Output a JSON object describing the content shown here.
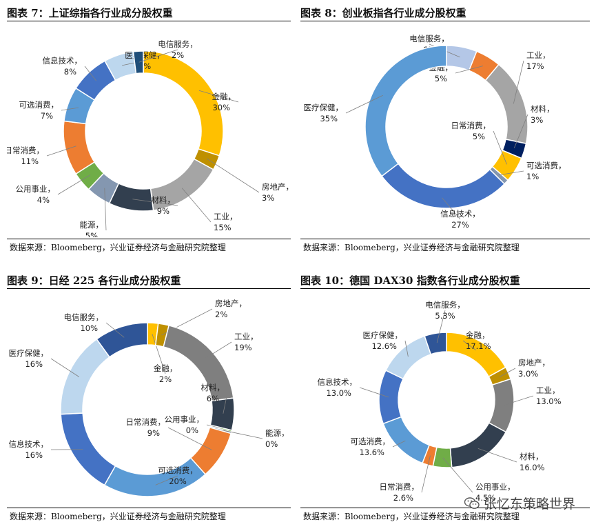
{
  "chart_data": [
    {
      "type": "pie",
      "title": "图表 7：上证综指各行业成分股权重",
      "source": "数据来源：Bloomeberg，兴业证券经济与金融研究院整理",
      "slices": [
        {
          "label": "金融",
          "value_text": "30%",
          "value": 30,
          "color": "#FFC000"
        },
        {
          "label": "房地产",
          "value_text": "3%",
          "value": 3,
          "color": "#BF9000"
        },
        {
          "label": "工业",
          "value_text": "15%",
          "value": 15,
          "color": "#A5A5A5"
        },
        {
          "label": "材料",
          "value_text": "9%",
          "value": 9,
          "color": "#323F4F"
        },
        {
          "label": "能源",
          "value_text": "5%",
          "value": 5,
          "color": "#8497B0"
        },
        {
          "label": "公用事业",
          "value_text": "4%",
          "value": 4,
          "color": "#70AD47"
        },
        {
          "label": "日常消费",
          "value_text": "11%",
          "value": 11,
          "color": "#ED7D31"
        },
        {
          "label": "可选消费",
          "value_text": "7%",
          "value": 7,
          "color": "#5B9BD5"
        },
        {
          "label": "信息技术",
          "value_text": "8%",
          "value": 8,
          "color": "#4472C4"
        },
        {
          "label": "医疗保健",
          "value_text": "6%",
          "value": 6,
          "color": "#BDD7EE"
        },
        {
          "label": "电信服务",
          "value_text": "2%",
          "value": 2,
          "color": "#1F4E79"
        }
      ]
    },
    {
      "type": "pie",
      "title": "图表 8：创业板指各行业成分股权重",
      "source": "数据来源：Bloomeberg，兴业证券经济与金融研究院整理",
      "slices": [
        {
          "label": "电信服务",
          "value_text": "6%",
          "value": 6,
          "color": "#B4C7E7"
        },
        {
          "label": "金融",
          "value_text": "5%",
          "value": 5,
          "color": "#ED7D31"
        },
        {
          "label": "工业",
          "value_text": "17%",
          "value": 17,
          "color": "#A5A5A5"
        },
        {
          "label": "材料",
          "value_text": "3%",
          "value": 3,
          "color": "#002060"
        },
        {
          "label": "日常消费",
          "value_text": "5%",
          "value": 5,
          "color": "#FFC000"
        },
        {
          "label": "可选消费",
          "value_text": "1%",
          "value": 1,
          "color": "#8497B0"
        },
        {
          "label": "信息技术",
          "value_text": "27%",
          "value": 27,
          "color": "#4472C4"
        },
        {
          "label": "医疗保健",
          "value_text": "35%",
          "value": 35,
          "color": "#5B9BD5"
        }
      ]
    },
    {
      "type": "pie",
      "title": "图表 9：日经 225 各行业成分股权重",
      "source": "数据来源：Bloomeberg，兴业证券经济与金融研究院整理",
      "slices": [
        {
          "label": "金融",
          "value_text": "2%",
          "value": 2,
          "color": "#FFC000"
        },
        {
          "label": "房地产",
          "value_text": "2%",
          "value": 2,
          "color": "#BF9000"
        },
        {
          "label": "工业",
          "value_text": "19%",
          "value": 19,
          "color": "#7F7F7F"
        },
        {
          "label": "材料",
          "value_text": "6%",
          "value": 6,
          "color": "#323F4F"
        },
        {
          "label": "公用事业",
          "value_text": "0%",
          "value": 0.3,
          "color": "#70AD47"
        },
        {
          "label": "能源",
          "value_text": "0%",
          "value": 0.3,
          "color": "#8497B0"
        },
        {
          "label": "日常消费",
          "value_text": "9%",
          "value": 9,
          "color": "#ED7D31"
        },
        {
          "label": "可选消费",
          "value_text": "20%",
          "value": 20,
          "color": "#5B9BD5"
        },
        {
          "label": "信息技术",
          "value_text": "16%",
          "value": 16,
          "color": "#4472C4"
        },
        {
          "label": "医疗保健",
          "value_text": "16%",
          "value": 16,
          "color": "#BDD7EE"
        },
        {
          "label": "电信服务",
          "value_text": "10%",
          "value": 10,
          "color": "#2F5597"
        }
      ]
    },
    {
      "type": "pie",
      "title": "图表 10：德国 DAX30 指数各行业成分股权重",
      "source": "数据来源：Bloomeberg，兴业证券经济与金融研究院整理",
      "slices": [
        {
          "label": "金融",
          "value_text": "17.1%",
          "value": 17.1,
          "color": "#FFC000"
        },
        {
          "label": "房地产",
          "value_text": "3.0%",
          "value": 3.0,
          "color": "#BF9000"
        },
        {
          "label": "工业",
          "value_text": "13.0%",
          "value": 13.0,
          "color": "#7F7F7F"
        },
        {
          "label": "材料",
          "value_text": "16.0%",
          "value": 16.0,
          "color": "#323F4F"
        },
        {
          "label": "公用事业",
          "value_text": "4.5%",
          "value": 4.5,
          "color": "#70AD47"
        },
        {
          "label": "日常消费",
          "value_text": "2.6%",
          "value": 2.6,
          "color": "#ED7D31"
        },
        {
          "label": "可选消费",
          "value_text": "13.6%",
          "value": 13.6,
          "color": "#5B9BD5"
        },
        {
          "label": "信息技术",
          "value_text": "13.0%",
          "value": 13.0,
          "color": "#4472C4"
        },
        {
          "label": "医疗保健",
          "value_text": "12.6%",
          "value": 12.6,
          "color": "#BDD7EE"
        },
        {
          "label": "电信服务",
          "value_text": "5.3%",
          "value": 5.3,
          "color": "#2F5597"
        }
      ]
    }
  ],
  "watermark": "张忆东策略世界"
}
